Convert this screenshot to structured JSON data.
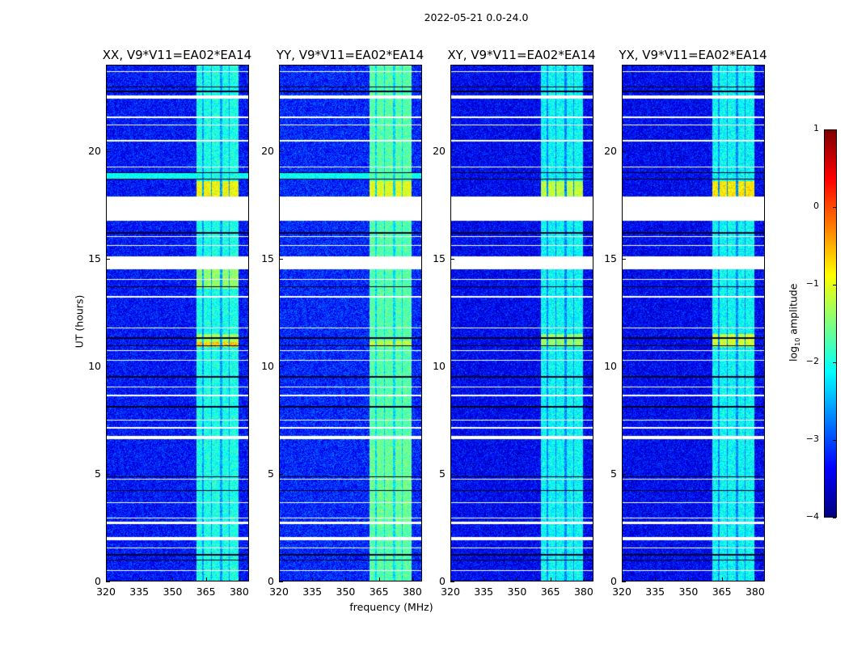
{
  "chart_data": {
    "type": "heatmap",
    "title": "2022-05-21 0.0-24.0",
    "xlabel": "frequency (MHz)",
    "ylabel": "UT (hours)",
    "xlim": [
      320,
      384.4
    ],
    "ylim": [
      0,
      24
    ],
    "xticks": [
      320,
      335,
      350,
      365,
      380
    ],
    "yticks": [
      0,
      5,
      10,
      15,
      20
    ],
    "colorbar": {
      "label_main": "log",
      "label_sub": "10",
      "label_tail": " amplitude",
      "colormap": "jet",
      "range": [
        -4,
        1
      ],
      "ticks": [
        1,
        0,
        -1,
        -2,
        -3,
        -4
      ],
      "tick_labels": [
        "1",
        "0",
        "−1",
        "−2",
        "−3",
        "−4"
      ]
    },
    "panels": [
      {
        "title": "XX, V9*V11=EA02*EA14",
        "background_log_amp": -3.3,
        "band_log_amp": -2.0,
        "bright_events": [
          {
            "hours": [
              17.9,
              18.6
            ],
            "log_amp": -0.9
          },
          {
            "hours": [
              10.9,
              11.1
            ],
            "log_amp": -0.6
          },
          {
            "hours": [
              11.1,
              11.5
            ],
            "log_amp": -1.3
          },
          {
            "hours": [
              13.6,
              14.5
            ],
            "log_amp": -1.4
          },
          {
            "hours": [
              18.7,
              19.0
            ],
            "log_amp": -2.0
          }
        ]
      },
      {
        "title": "YY, V9*V11=EA02*EA14",
        "background_log_amp": -3.2,
        "band_log_amp": -1.7,
        "bright_events": [
          {
            "hours": [
              17.9,
              18.6
            ],
            "log_amp": -1.0
          },
          {
            "hours": [
              10.9,
              11.2
            ],
            "log_amp": -1.2
          },
          {
            "hours": [
              2.5,
              6.5
            ],
            "log_amp": -1.6
          },
          {
            "hours": [
              18.7,
              19.0
            ],
            "log_amp": -2.0
          }
        ]
      },
      {
        "title": "XY, V9*V11=EA02*EA14",
        "background_log_amp": -3.4,
        "band_log_amp": -2.1,
        "bright_events": [
          {
            "hours": [
              17.9,
              18.6
            ],
            "log_amp": -1.2
          },
          {
            "hours": [
              10.9,
              11.5
            ],
            "log_amp": -1.4
          }
        ]
      },
      {
        "title": "YX, V9*V11=EA02*EA14",
        "background_log_amp": -3.4,
        "band_log_amp": -2.1,
        "bright_events": [
          {
            "hours": [
              17.9,
              18.6
            ],
            "log_amp": -0.8
          },
          {
            "hours": [
              10.9,
              11.5
            ],
            "log_amp": -1.1
          }
        ]
      }
    ],
    "band_mhz": [
      361,
      380
    ],
    "band_subchannels_mhz": [
      [
        361,
        363.5
      ],
      [
        364,
        367.5
      ],
      [
        368,
        371.5
      ],
      [
        372.5,
        375.5
      ],
      [
        376,
        380
      ]
    ],
    "flagged_hours": [
      [
        23.7,
        23.75
      ],
      [
        22.45,
        22.6
      ],
      [
        21.55,
        21.62
      ],
      [
        21.2,
        21.25
      ],
      [
        20.45,
        20.52
      ],
      [
        19.25,
        19.3
      ],
      [
        17.3,
        17.9
      ],
      [
        16.78,
        17.3
      ],
      [
        16.0,
        16.05
      ],
      [
        15.6,
        15.65
      ],
      [
        14.5,
        15.1
      ],
      [
        14.0,
        14.05
      ],
      [
        13.2,
        13.25
      ],
      [
        11.75,
        11.8
      ],
      [
        10.7,
        10.75
      ],
      [
        10.25,
        10.3
      ],
      [
        9.0,
        9.05
      ],
      [
        8.6,
        8.65
      ],
      [
        7.45,
        7.5
      ],
      [
        7.1,
        7.15
      ],
      [
        6.6,
        6.75
      ],
      [
        4.7,
        4.75
      ],
      [
        3.6,
        3.65
      ],
      [
        2.9,
        2.95
      ],
      [
        2.65,
        2.75
      ],
      [
        1.9,
        2.05
      ],
      [
        1.5,
        1.55
      ],
      [
        0.45,
        0.5
      ]
    ],
    "dropout_hours": [
      23.0,
      22.8,
      19.0,
      18.7,
      16.2,
      13.7,
      11.3,
      10.95,
      9.5,
      8.1,
      4.85,
      4.2,
      1.2,
      0.95
    ]
  }
}
